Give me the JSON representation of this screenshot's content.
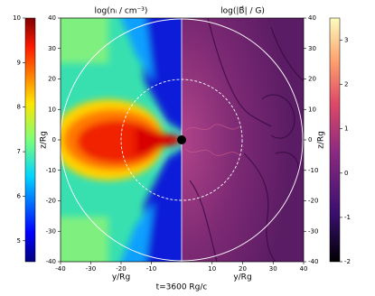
{
  "chart_data": [
    {
      "type": "image",
      "title": "log(nᵢ / cm⁻³)",
      "x_label": "y/Rg",
      "y_label": "z/Rg",
      "xlim": [
        -40,
        0
      ],
      "xticks": [
        -40,
        -30,
        -20,
        -10
      ],
      "ylim": [
        -40,
        40
      ],
      "yticks": [
        -40,
        -30,
        -20,
        -10,
        0,
        10,
        20,
        30,
        40
      ],
      "colorbar": {
        "lim": [
          4.53,
          10
        ],
        "ticks": [
          5,
          6,
          7,
          8,
          9,
          10
        ]
      }
    },
    {
      "type": "image",
      "title": "log(|B⃗| / G)",
      "x_label": "y/Rg",
      "y_label": "z/Rg",
      "xlim": [
        0,
        40
      ],
      "xticks": [
        10,
        20,
        30,
        40
      ],
      "ylim": [
        -40,
        40
      ],
      "yticks": [
        -40,
        -30,
        -20,
        -10,
        0,
        10,
        20,
        30,
        40
      ],
      "colorbar": {
        "lim": [
          -2,
          3.5
        ],
        "ticks": [
          -2,
          -1,
          0,
          1,
          2,
          3
        ]
      }
    }
  ],
  "annotation": "t=3600 Rg/c"
}
